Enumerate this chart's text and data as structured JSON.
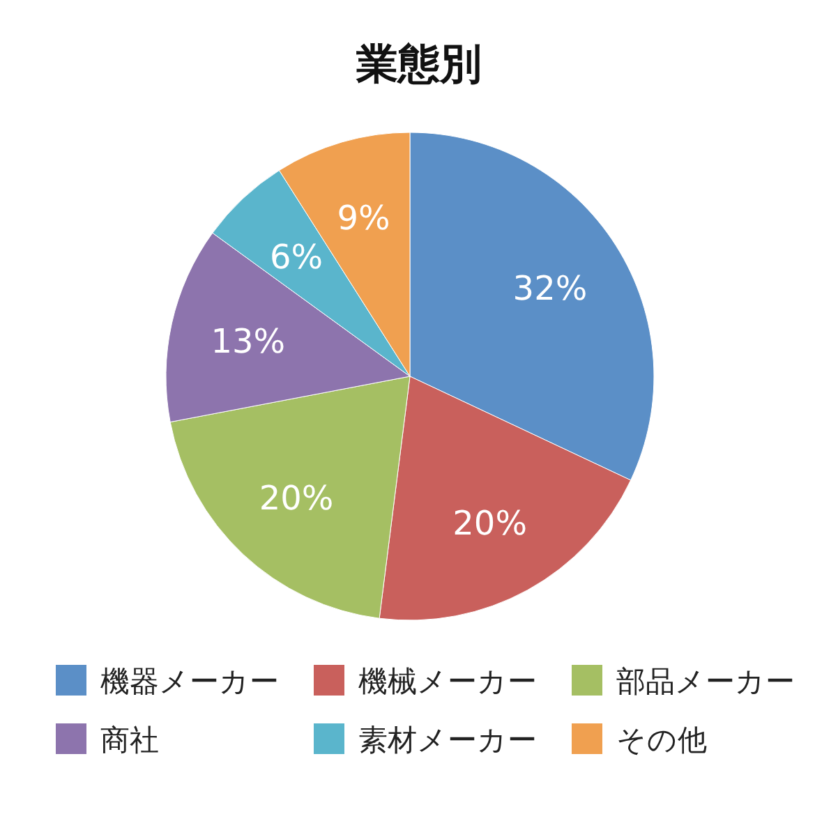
{
  "chart_data": {
    "type": "pie",
    "title": "業態別",
    "categories": [
      "機器メーカー",
      "機械メーカー",
      "部品メーカー",
      "商社",
      "素材メーカー",
      "その他"
    ],
    "values": [
      32,
      20,
      20,
      13,
      6,
      9
    ],
    "value_labels": [
      "32%",
      "20%",
      "20%",
      "13%",
      "6%",
      "9%"
    ],
    "colors": [
      "#5b8fc7",
      "#c9605c",
      "#a5bf63",
      "#8d74ad",
      "#5ab5cc",
      "#f0a050"
    ],
    "legend": "bottom"
  }
}
